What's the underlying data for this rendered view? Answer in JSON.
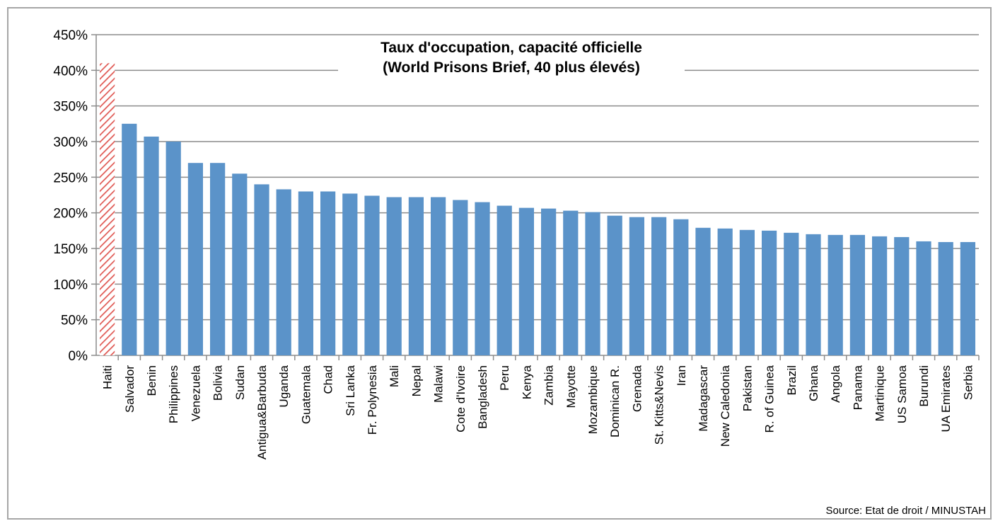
{
  "chart_data": {
    "type": "bar",
    "title": "Taux d'occupation, capacité officielle",
    "subtitle": "(World Prisons Brief, 40 plus élevés)",
    "xlabel": "",
    "ylabel": "",
    "ylim": [
      0,
      450
    ],
    "yticks": [
      0,
      50,
      100,
      150,
      200,
      250,
      300,
      350,
      400,
      450
    ],
    "ytick_labels": [
      "0%",
      "50%",
      "100%",
      "150%",
      "200%",
      "250%",
      "300%",
      "350%",
      "400%",
      "450%"
    ],
    "grid": true,
    "legend": "none",
    "colors": {
      "bar": "#5b93c9",
      "highlight_hatch": "#e05a55",
      "grid": "#8c8c8c",
      "axis": "#8c8c8c"
    },
    "highlight_category": "Haiti",
    "categories": [
      "Haiti",
      "Salvador",
      "Benin",
      "Philippines",
      "Venezuela",
      "Bolivia",
      "Sudan",
      "Antigua&Barbuda",
      "Uganda",
      "Guatemala",
      "Chad",
      "Sri Lanka",
      "Fr. Polynesia",
      "Mali",
      "Nepal",
      "Malawi",
      "Cote d'Ivoire",
      "Bangladesh",
      "Peru",
      "Kenya",
      "Zambia",
      "Mayotte",
      "Mozambique",
      "Dominican R.",
      "Grenada",
      "St. Kitts&Nevis",
      "Iran",
      "Madagascar",
      "New Caledonia",
      "Pakistan",
      "R. of Guinea",
      "Brazil",
      "Ghana",
      "Angola",
      "Panama",
      "Martinique",
      "US Samoa",
      "Burundi",
      "UA Emirates",
      "Serbia"
    ],
    "values": [
      410,
      325,
      307,
      300,
      270,
      270,
      255,
      240,
      233,
      230,
      230,
      227,
      224,
      222,
      222,
      222,
      218,
      215,
      210,
      207,
      206,
      203,
      201,
      196,
      194,
      194,
      191,
      179,
      178,
      176,
      175,
      172,
      170,
      169,
      169,
      167,
      166,
      160,
      159,
      159
    ]
  },
  "source": "Source: Etat de droit / MINUSTAH"
}
